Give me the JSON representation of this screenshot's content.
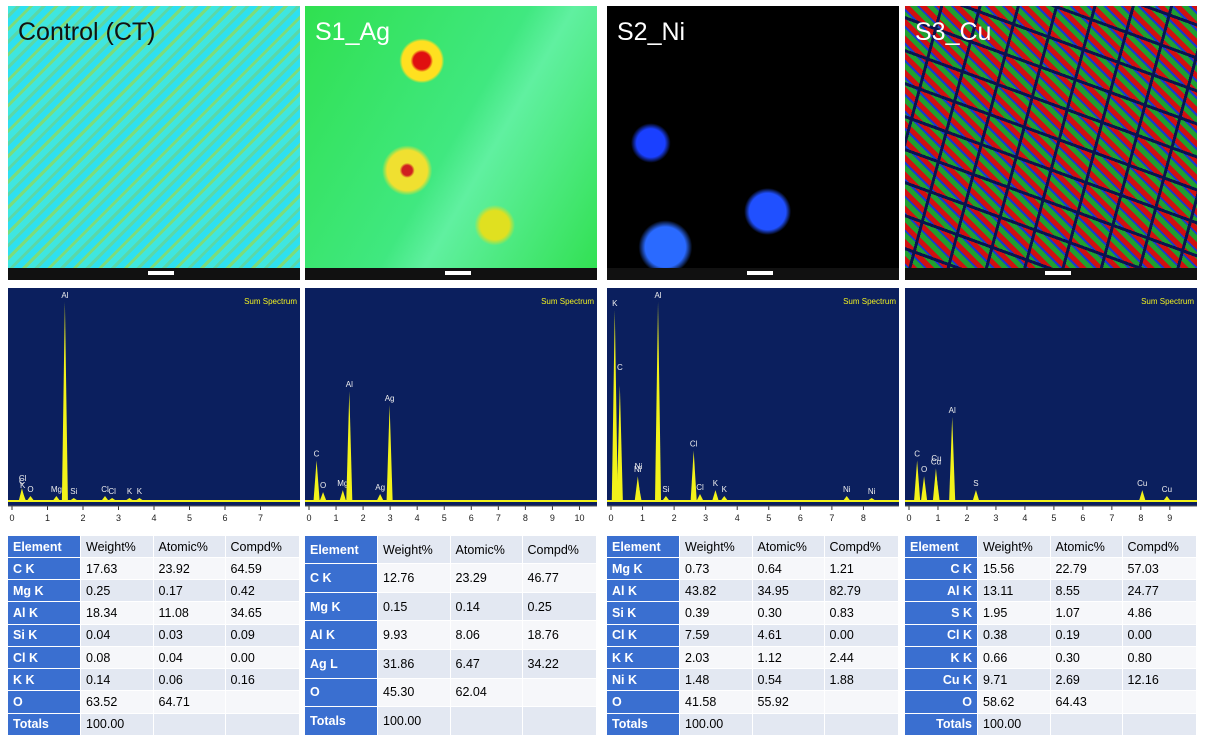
{
  "panels": [
    {
      "label": "Control (CT)",
      "spectrum": {
        "title": "Sum Spectrum",
        "xlim": [
          0,
          8
        ],
        "xticks": [
          0,
          1,
          2,
          3,
          4,
          5,
          6,
          7
        ],
        "peaks": [
          {
            "label": "C",
            "energy": 0.28,
            "intensity": 6
          },
          {
            "label": "K",
            "energy": 0.3,
            "intensity": 4
          },
          {
            "label": "Cl",
            "energy": 0.3,
            "intensity": 2
          },
          {
            "label": "O",
            "energy": 0.52,
            "intensity": 2
          },
          {
            "label": "Mg",
            "energy": 1.25,
            "intensity": 2
          },
          {
            "label": "Al",
            "energy": 1.49,
            "intensity": 100
          },
          {
            "label": "Si",
            "energy": 1.74,
            "intensity": 1
          },
          {
            "label": "Cl",
            "energy": 2.62,
            "intensity": 2
          },
          {
            "label": "Cl",
            "energy": 2.82,
            "intensity": 1
          },
          {
            "label": "K",
            "energy": 3.31,
            "intensity": 1
          },
          {
            "label": "K",
            "energy": 3.59,
            "intensity": 1
          }
        ]
      },
      "table": {
        "header": [
          "Element",
          "Weight%",
          "Atomic%",
          "Compd%"
        ],
        "rows": [
          [
            "C K",
            "17.63",
            "23.92",
            "64.59"
          ],
          [
            "Mg K",
            "0.25",
            "0.17",
            "0.42"
          ],
          [
            "Al K",
            "18.34",
            "11.08",
            "34.65"
          ],
          [
            "Si K",
            "0.04",
            "0.03",
            "0.09"
          ],
          [
            "Cl K",
            "0.08",
            "0.04",
            "0.00"
          ],
          [
            "K K",
            "0.14",
            "0.06",
            "0.16"
          ],
          [
            "O",
            "63.52",
            "64.71"
          ],
          [
            "Totals",
            "100.00"
          ]
        ]
      }
    },
    {
      "label": "S1_Ag",
      "spectrum": {
        "title": "Sum Spectrum",
        "xlim": [
          0,
          10.5
        ],
        "xticks": [
          0,
          1,
          2,
          3,
          4,
          5,
          6,
          7,
          8,
          9,
          10
        ],
        "peaks": [
          {
            "label": "C",
            "energy": 0.28,
            "intensity": 20
          },
          {
            "label": "O",
            "energy": 0.52,
            "intensity": 4
          },
          {
            "label": "Mg",
            "energy": 1.25,
            "intensity": 5
          },
          {
            "label": "Al",
            "energy": 1.49,
            "intensity": 55
          },
          {
            "label": "Ag",
            "energy": 2.63,
            "intensity": 3
          },
          {
            "label": "Ag",
            "energy": 2.98,
            "intensity": 48
          }
        ]
      },
      "table": {
        "header": [
          "Element",
          "Weight%",
          "Atomic%",
          "Compd%"
        ],
        "rows": [
          [
            "C K",
            "12.76",
            "23.29",
            "46.77"
          ],
          [
            "Mg K",
            "0.15",
            "0.14",
            "0.25"
          ],
          [
            "Al K",
            "9.93",
            "8.06",
            "18.76"
          ],
          [
            "Ag L",
            "31.86",
            "6.47",
            "34.22"
          ],
          [
            "O",
            "45.30",
            "62.04"
          ],
          [
            "Totals",
            "100.00"
          ]
        ]
      }
    },
    {
      "label": "S2_Ni",
      "spectrum": {
        "title": "Sum Spectrum",
        "xlim": [
          0,
          9
        ],
        "xticks": [
          0,
          1,
          2,
          3,
          4,
          5,
          6,
          7,
          8
        ],
        "peaks": [
          {
            "label": "K",
            "energy": 0.12,
            "intensity": 96
          },
          {
            "label": "C",
            "energy": 0.28,
            "intensity": 58
          },
          {
            "label": "Ni",
            "energy": 0.85,
            "intensity": 12
          },
          {
            "label": "Ni",
            "energy": 0.87,
            "intensity": 8
          },
          {
            "label": "Al",
            "energy": 1.49,
            "intensity": 100
          },
          {
            "label": "Si",
            "energy": 1.74,
            "intensity": 2
          },
          {
            "label": "Cl",
            "energy": 2.62,
            "intensity": 25
          },
          {
            "label": "Cl",
            "energy": 2.82,
            "intensity": 3
          },
          {
            "label": "K",
            "energy": 3.31,
            "intensity": 5
          },
          {
            "label": "K",
            "energy": 3.59,
            "intensity": 2
          },
          {
            "label": "Ni",
            "energy": 7.47,
            "intensity": 2
          },
          {
            "label": "Ni",
            "energy": 8.26,
            "intensity": 1
          }
        ]
      },
      "table": {
        "header": [
          "Element",
          "Weight%",
          "Atomic%",
          "Compd%"
        ],
        "rows": [
          [
            "Mg K",
            "0.73",
            "0.64",
            "1.21"
          ],
          [
            "Al K",
            "43.82",
            "34.95",
            "82.79"
          ],
          [
            "Si K",
            "0.39",
            "0.30",
            "0.83"
          ],
          [
            "Cl K",
            "7.59",
            "4.61",
            "0.00"
          ],
          [
            "K K",
            "2.03",
            "1.12",
            "2.44"
          ],
          [
            "Ni K",
            "1.48",
            "0.54",
            "1.88"
          ],
          [
            "O",
            "41.58",
            "55.92"
          ],
          [
            "Totals",
            "100.00"
          ]
        ]
      }
    },
    {
      "label": "S3_Cu",
      "spectrum": {
        "title": "Sum Spectrum",
        "xlim": [
          0,
          9.8
        ],
        "xticks": [
          0,
          1,
          2,
          3,
          4,
          5,
          6,
          7,
          8,
          9
        ],
        "peaks": [
          {
            "label": "C",
            "energy": 0.28,
            "intensity": 20
          },
          {
            "label": "O",
            "energy": 0.52,
            "intensity": 12
          },
          {
            "label": "Cu",
            "energy": 0.93,
            "intensity": 16
          },
          {
            "label": "Cu",
            "energy": 0.95,
            "intensity": 12
          },
          {
            "label": "Al",
            "energy": 1.49,
            "intensity": 42
          },
          {
            "label": "S",
            "energy": 2.31,
            "intensity": 5
          },
          {
            "label": "Cu",
            "energy": 8.05,
            "intensity": 5
          },
          {
            "label": "Cu",
            "energy": 8.9,
            "intensity": 2
          }
        ]
      },
      "table": {
        "header": [
          "Element",
          "Weight%",
          "Atomic%",
          "Compd%"
        ],
        "rows": [
          [
            "C K",
            "15.56",
            "22.79",
            "57.03"
          ],
          [
            "Al K",
            "13.11",
            "8.55",
            "24.77"
          ],
          [
            "S K",
            "1.95",
            "1.07",
            "4.86"
          ],
          [
            "Cl K",
            "0.38",
            "0.19",
            "0.00"
          ],
          [
            "K K",
            "0.66",
            "0.30",
            "0.80"
          ],
          [
            "Cu K",
            "9.71",
            "2.69",
            "12.16"
          ],
          [
            "O",
            "58.62",
            "64.43"
          ],
          [
            "Totals",
            "100.00"
          ]
        ]
      }
    }
  ]
}
